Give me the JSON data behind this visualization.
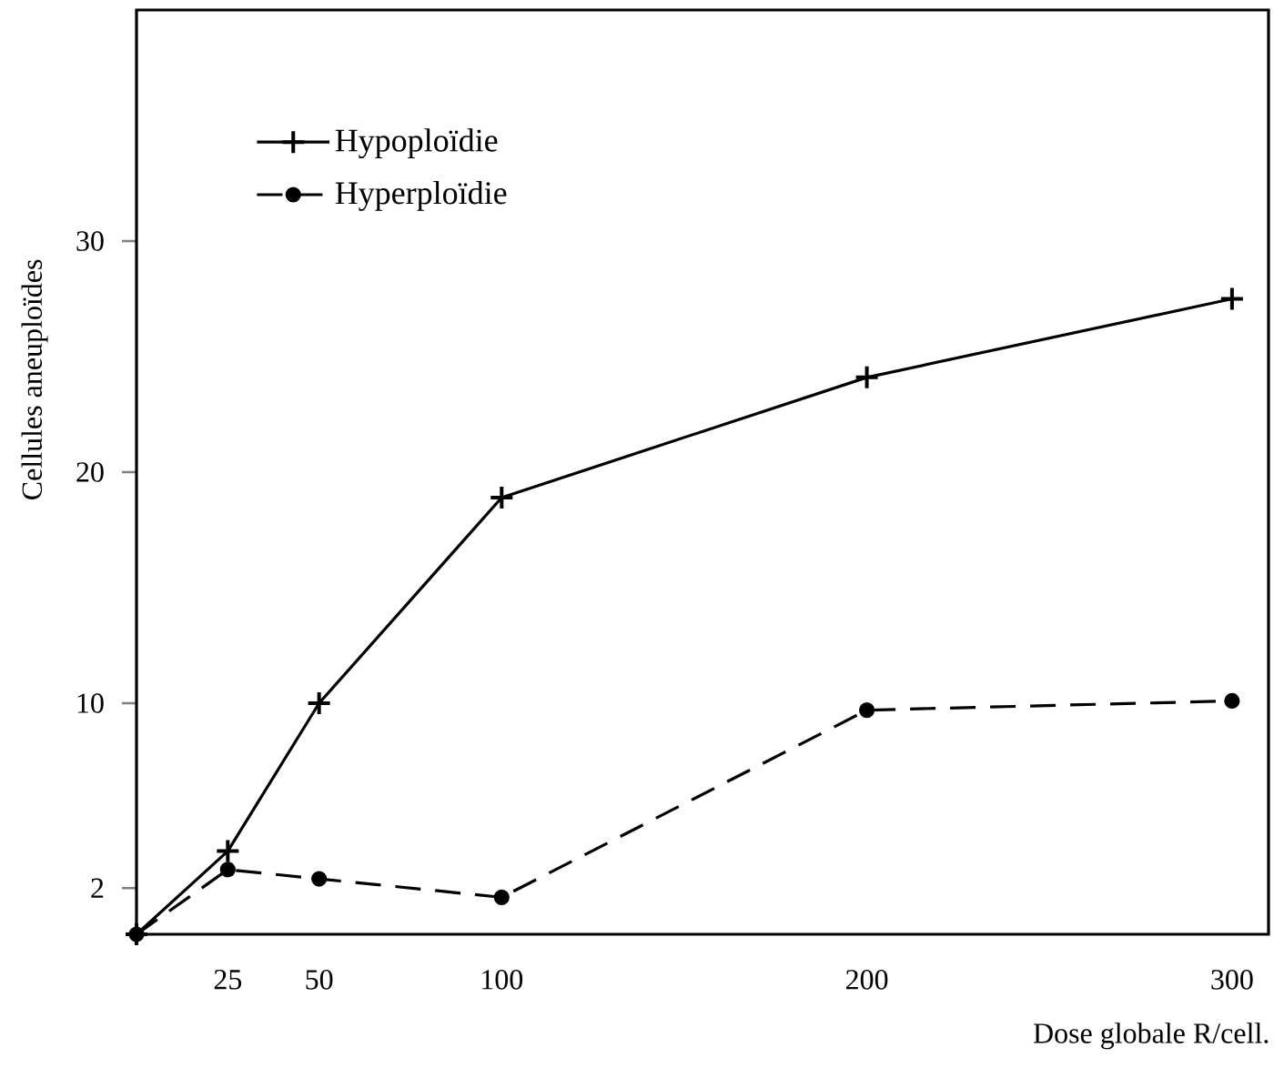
{
  "chart_data": {
    "type": "line",
    "xlabel": "Dose globale  R/cell.",
    "ylabel": "Cellules aneuploïdes",
    "x": [
      0,
      25,
      50,
      100,
      200,
      300
    ],
    "xlim": [
      0,
      310
    ],
    "ylim": [
      0,
      40
    ],
    "xticks": [
      25,
      50,
      100,
      200,
      300
    ],
    "yticks": [
      2,
      10,
      20,
      30
    ],
    "legend": "top left",
    "grid": false,
    "series": [
      {
        "name": "Hypoploïdie",
        "color": "#000000",
        "values": [
          0,
          3.6,
          10,
          18.9,
          24.1,
          27.5
        ],
        "marker": "cross",
        "line_style": "solid"
      },
      {
        "name": "Hyperploïdie",
        "color": "#000000",
        "values": [
          0,
          2.8,
          2.4,
          1.6,
          9.7,
          10.1
        ],
        "marker": "circle",
        "line_style": "dashed"
      }
    ]
  }
}
